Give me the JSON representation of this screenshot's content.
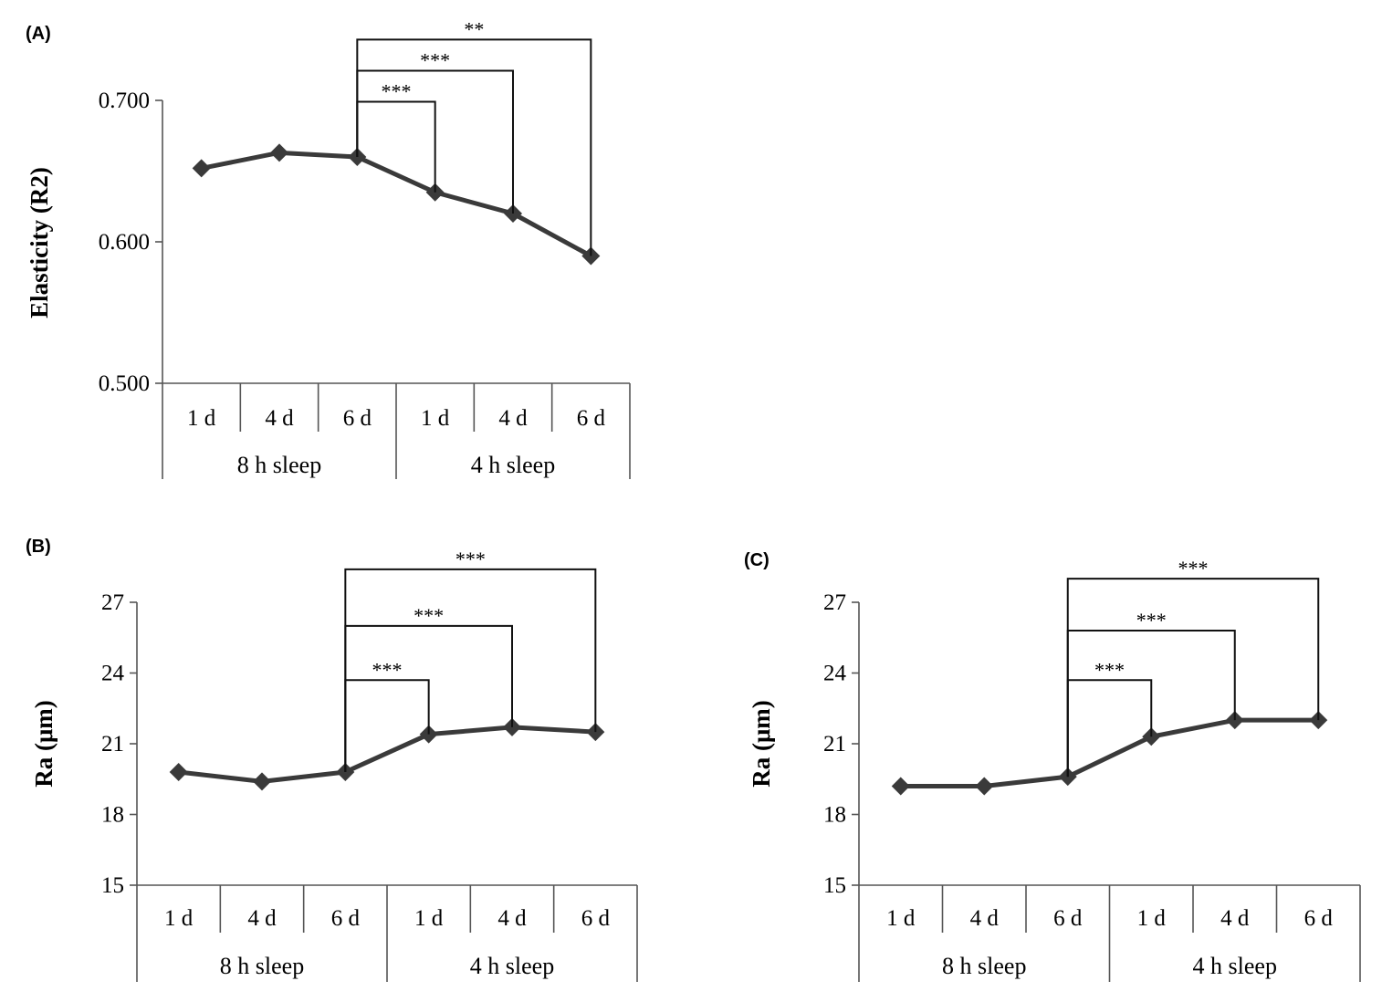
{
  "chart_data": [
    {
      "id": "A",
      "type": "line",
      "panel_label": "(A)",
      "ylabel": "Elasticity (R2)",
      "ylim": [
        0.5,
        0.7
      ],
      "yticks": [
        0.5,
        0.6,
        0.7
      ],
      "ytick_labels": [
        "0.500",
        "0.600",
        "0.700"
      ],
      "categories": [
        "1 d",
        "4 d",
        "6 d",
        "1 d",
        "4 d",
        "6 d"
      ],
      "groups": [
        {
          "label": "8 h sleep",
          "span": [
            0,
            2
          ]
        },
        {
          "label": "4 h sleep",
          "span": [
            3,
            5
          ]
        }
      ],
      "series": [
        {
          "values": [
            0.652,
            0.663,
            0.66,
            0.635,
            0.62,
            0.59
          ],
          "color": "#3a3a3a"
        }
      ],
      "significance": [
        {
          "from": 2,
          "to": 3,
          "label": "***",
          "level": 0.699
        },
        {
          "from": 2,
          "to": 4,
          "label": "***",
          "level": 0.721
        },
        {
          "from": 2,
          "to": 5,
          "label": "**",
          "level": 0.743
        }
      ],
      "grid": false
    },
    {
      "id": "B",
      "type": "line",
      "panel_label": "(B)",
      "ylabel": "Ra (μm)",
      "ylim": [
        15,
        27
      ],
      "yticks": [
        15,
        18,
        21,
        24,
        27
      ],
      "ytick_labels": [
        "15",
        "18",
        "21",
        "24",
        "27"
      ],
      "categories": [
        "1 d",
        "4 d",
        "6 d",
        "1 d",
        "4 d",
        "6 d"
      ],
      "groups": [
        {
          "label": "8 h sleep",
          "span": [
            0,
            2
          ]
        },
        {
          "label": "4 h sleep",
          "span": [
            3,
            5
          ]
        }
      ],
      "series": [
        {
          "values": [
            19.8,
            19.4,
            19.8,
            21.4,
            21.7,
            21.5
          ],
          "color": "#3a3a3a"
        }
      ],
      "significance": [
        {
          "from": 2,
          "to": 3,
          "label": "***",
          "level": 23.7
        },
        {
          "from": 2,
          "to": 4,
          "label": "***",
          "level": 26.0
        },
        {
          "from": 2,
          "to": 5,
          "label": "***",
          "level": 28.4
        }
      ],
      "grid": false
    },
    {
      "id": "C",
      "type": "line",
      "panel_label": "(C)",
      "ylabel": "Ra (μm)",
      "ylim": [
        15,
        27
      ],
      "yticks": [
        15,
        18,
        21,
        24,
        27
      ],
      "ytick_labels": [
        "15",
        "18",
        "21",
        "24",
        "27"
      ],
      "categories": [
        "1 d",
        "4 d",
        "6 d",
        "1 d",
        "4 d",
        "6 d"
      ],
      "groups": [
        {
          "label": "8 h sleep",
          "span": [
            0,
            2
          ]
        },
        {
          "label": "4 h sleep",
          "span": [
            3,
            5
          ]
        }
      ],
      "series": [
        {
          "values": [
            19.2,
            19.2,
            19.6,
            21.3,
            22.0,
            22.0
          ],
          "color": "#3a3a3a"
        }
      ],
      "significance": [
        {
          "from": 2,
          "to": 3,
          "label": "***",
          "level": 23.7
        },
        {
          "from": 2,
          "to": 4,
          "label": "***",
          "level": 25.8
        },
        {
          "from": 2,
          "to": 5,
          "label": "***",
          "level": 28.0
        }
      ],
      "grid": false
    }
  ]
}
